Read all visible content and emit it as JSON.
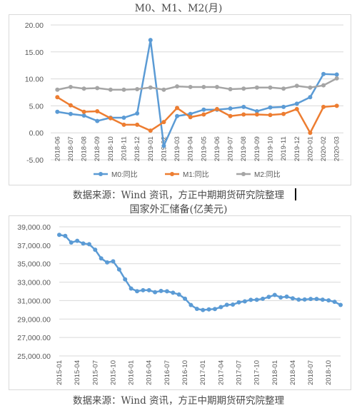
{
  "chart_data": [
    {
      "type": "line",
      "title": "M0、M1、M2(月)",
      "x": [
        "2018-06",
        "2018-07",
        "2018-08",
        "2018-09",
        "2018-10",
        "2018-11",
        "2018-12",
        "2019-01",
        "2019-02",
        "2019-03",
        "2019-04",
        "2019-05",
        "2019-06",
        "2019-07",
        "2019-08",
        "2019-09",
        "2019-10",
        "2019-11",
        "2019-12",
        "2020-01",
        "2020-02",
        "2020-03"
      ],
      "yticks": [
        "20.00",
        "15.00",
        "10.00",
        "5.00",
        "0.00",
        "-5.00"
      ],
      "ylim": [
        -5,
        20
      ],
      "legend_position": "bottom",
      "grid": true,
      "series": [
        {
          "name": "M0:同比",
          "color": "#5b9bd5",
          "values": [
            3.9,
            3.5,
            3.2,
            2.2,
            2.8,
            2.8,
            3.6,
            17.2,
            -2.4,
            3.1,
            3.5,
            4.3,
            4.3,
            4.5,
            4.8,
            4.0,
            4.7,
            4.8,
            5.4,
            6.6,
            10.9,
            10.8
          ]
        },
        {
          "name": "M1:同比",
          "color": "#ed7d31",
          "values": [
            6.6,
            5.1,
            3.9,
            4.0,
            2.7,
            1.5,
            1.5,
            0.4,
            2.0,
            4.6,
            2.9,
            3.4,
            4.4,
            3.1,
            3.4,
            3.4,
            3.3,
            3.5,
            4.4,
            0.0,
            4.8,
            5.0
          ]
        },
        {
          "name": "M2:同比",
          "color": "#a5a5a5",
          "values": [
            8.0,
            8.5,
            8.2,
            8.3,
            8.0,
            8.0,
            8.1,
            8.4,
            8.0,
            8.6,
            8.5,
            8.5,
            8.5,
            8.1,
            8.2,
            8.4,
            8.4,
            8.2,
            8.7,
            8.4,
            8.8,
            10.1
          ]
        }
      ]
    },
    {
      "type": "line",
      "title": "国家外汇储备(亿美元)",
      "yticks": [
        "39,000.00",
        "37,000.00",
        "35,000.00",
        "33,000.00",
        "31,000.00",
        "29,000.00",
        "27,000.00",
        "25,000.00"
      ],
      "ylim": [
        25000,
        39000
      ],
      "xticks": [
        "2015-01",
        "2015-04",
        "2015-07",
        "2015-10",
        "2016-01",
        "2016-04",
        "2016-07",
        "2016-10",
        "2017-01",
        "2017-04",
        "2017-07",
        "2017-10",
        "2018-01",
        "2018-04",
        "2018-07",
        "2018-10"
      ],
      "grid": true,
      "series": [
        {
          "color": "#5b9bd5",
          "values": [
            38134,
            38016,
            37300,
            37480,
            37190,
            37112,
            36513,
            35574,
            35141,
            35255,
            34383,
            33304,
            32309,
            32023,
            32130,
            32126,
            31917,
            32052,
            32011,
            31852,
            31664,
            31211,
            30516,
            30105,
            29982,
            30051,
            30090,
            30295,
            30536,
            30568,
            30807,
            30920,
            31085,
            31092,
            31193,
            31399,
            31615,
            31345,
            31429,
            31249,
            31106,
            31121,
            31179,
            31178,
            31097,
            31025,
            30868,
            30531
          ]
        }
      ]
    }
  ],
  "source_text_1": "数据来源：Wind 资讯，方正中期期货研究院整理",
  "source_text_2": "数据来源：Wind 资讯，方正中期期货研究院整理"
}
